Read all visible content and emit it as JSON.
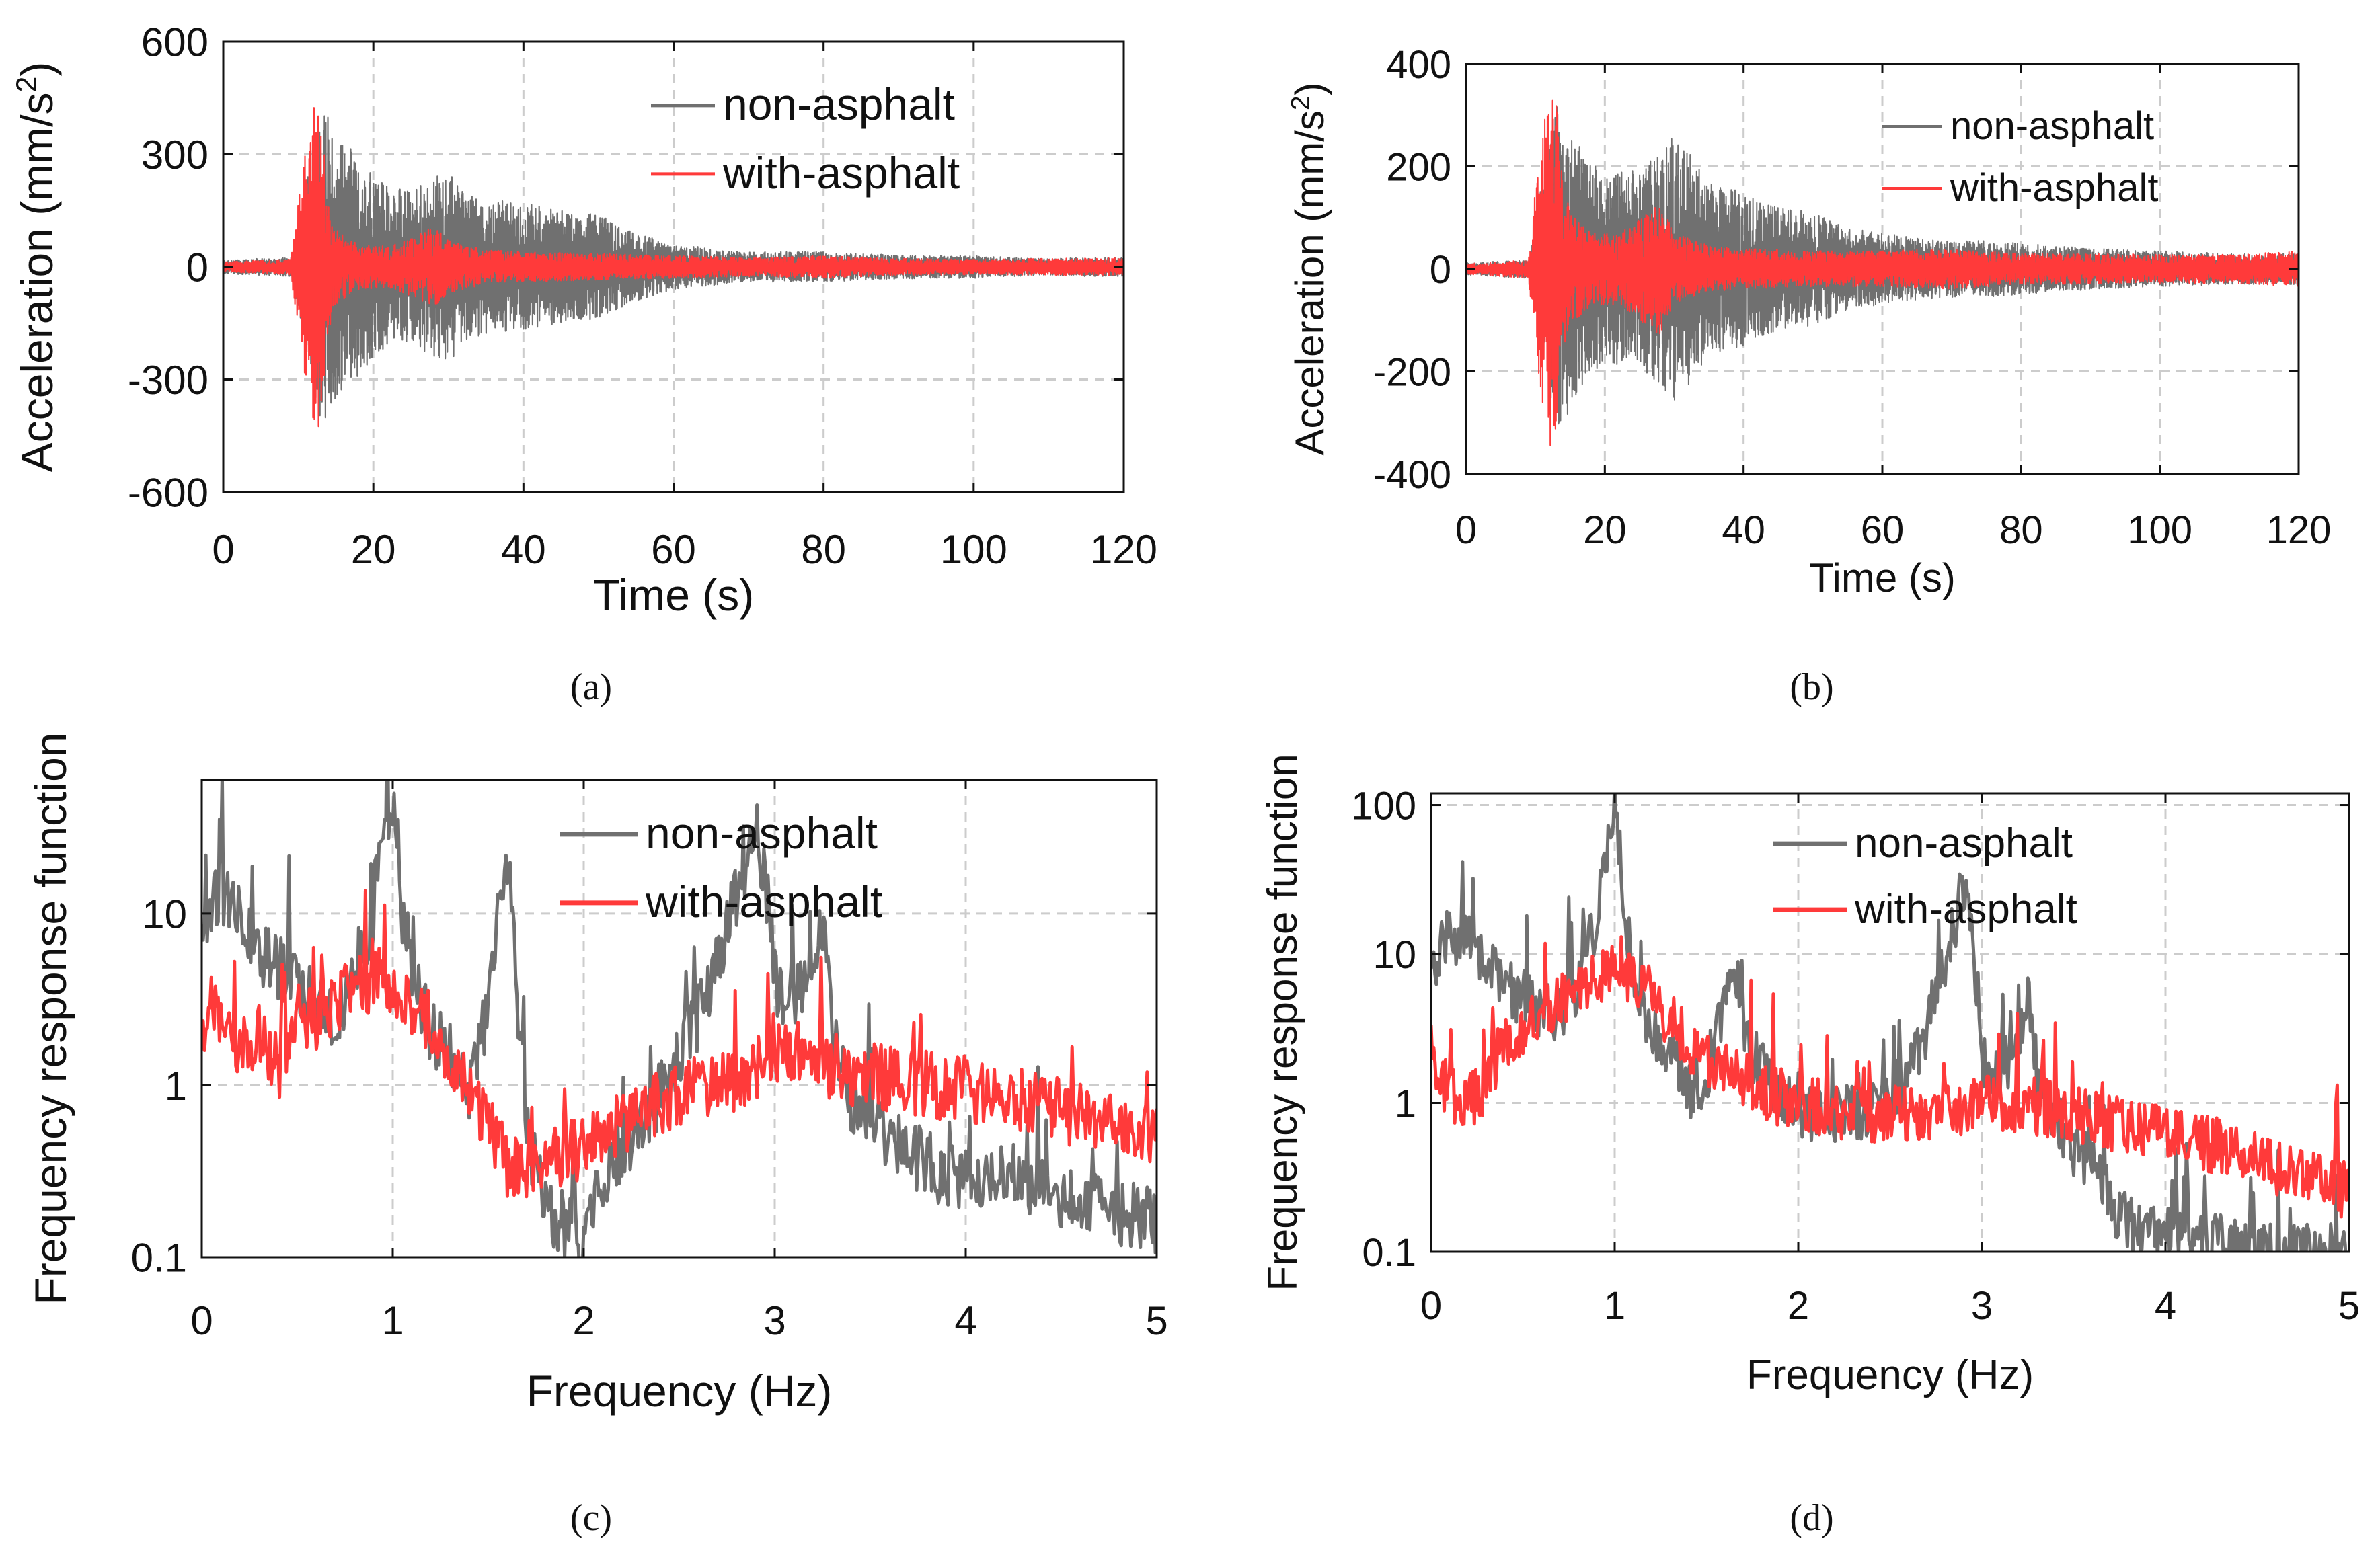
{
  "figure": {
    "captions": [
      "(a)",
      "(b)",
      "(c)",
      "(d)"
    ]
  },
  "colors": {
    "non_asphalt": "#707070",
    "with_asphalt": "#ff3a3a",
    "grid": "#cccccc",
    "axis": "#111111"
  },
  "chart_data": [
    {
      "panel": "a",
      "type": "line",
      "xlabel": "Time (s)",
      "ylabel": "Acceleration (mm/s",
      "ylabel_sup": "2",
      "ylabel_end": ")",
      "xlim": [
        0,
        120
      ],
      "ylim": [
        -600,
        600
      ],
      "xticks": [
        0,
        20,
        40,
        60,
        80,
        100,
        120
      ],
      "yticks": [
        -600,
        -300,
        0,
        300,
        600
      ],
      "ytick_labels": [
        "-600",
        "-300",
        "0",
        "300",
        "600"
      ],
      "grid": true,
      "legend_position": "top-right",
      "series": [
        {
          "name": "non-asphalt",
          "kind": "signal",
          "envelope": [
            [
              0,
              18
            ],
            [
              9,
              25
            ],
            [
              10,
              120
            ],
            [
              11,
              220
            ],
            [
              12,
              330
            ],
            [
              13,
              410
            ],
            [
              14,
              400
            ],
            [
              16,
              330
            ],
            [
              18,
              300
            ],
            [
              20,
              240
            ],
            [
              22,
              220
            ],
            [
              25,
              200
            ],
            [
              28,
              240
            ],
            [
              30,
              260
            ],
            [
              32,
              200
            ],
            [
              35,
              180
            ],
            [
              40,
              170
            ],
            [
              45,
              150
            ],
            [
              50,
              140
            ],
            [
              55,
              90
            ],
            [
              60,
              60
            ],
            [
              65,
              50
            ],
            [
              70,
              40
            ],
            [
              75,
              40
            ],
            [
              80,
              40
            ],
            [
              85,
              35
            ],
            [
              90,
              32
            ],
            [
              95,
              30
            ],
            [
              100,
              30
            ],
            [
              105,
              25
            ],
            [
              110,
              22
            ],
            [
              115,
              25
            ],
            [
              120,
              25
            ]
          ]
        },
        {
          "name": "with-asphalt",
          "kind": "signal",
          "envelope": [
            [
              0,
              14
            ],
            [
              9,
              20
            ],
            [
              10,
              170
            ],
            [
              11,
              330
            ],
            [
              12,
              460
            ],
            [
              13,
              420
            ],
            [
              14,
              180
            ],
            [
              15,
              100
            ],
            [
              18,
              60
            ],
            [
              22,
              55
            ],
            [
              26,
              85
            ],
            [
              28,
              110
            ],
            [
              30,
              70
            ],
            [
              35,
              45
            ],
            [
              40,
              40
            ],
            [
              50,
              35
            ],
            [
              60,
              30
            ],
            [
              70,
              25
            ],
            [
              80,
              30
            ],
            [
              90,
              22
            ],
            [
              100,
              20
            ],
            [
              110,
              22
            ],
            [
              120,
              24
            ]
          ]
        }
      ]
    },
    {
      "panel": "b",
      "type": "line",
      "xlabel": "Time (s)",
      "ylabel": "Acceleration (mm/s",
      "ylabel_sup": "2",
      "ylabel_end": ")",
      "xlim": [
        0,
        120
      ],
      "ylim": [
        -400,
        400
      ],
      "xticks": [
        0,
        20,
        40,
        60,
        80,
        100,
        120
      ],
      "yticks": [
        -400,
        -200,
        0,
        200,
        400
      ],
      "ytick_labels": [
        "-400",
        "-200",
        "0",
        "200",
        "400"
      ],
      "grid": true,
      "legend_position": "top-right",
      "series": [
        {
          "name": "non-asphalt",
          "kind": "signal",
          "envelope": [
            [
              0,
              12
            ],
            [
              9,
              18
            ],
            [
              10,
              80
            ],
            [
              11,
              180
            ],
            [
              12,
              260
            ],
            [
              13,
              320
            ],
            [
              14,
              300
            ],
            [
              16,
              250
            ],
            [
              18,
              210
            ],
            [
              20,
              180
            ],
            [
              25,
              200
            ],
            [
              28,
              230
            ],
            [
              30,
              270
            ],
            [
              32,
              230
            ],
            [
              35,
              170
            ],
            [
              40,
              150
            ],
            [
              45,
              120
            ],
            [
              50,
              110
            ],
            [
              55,
              80
            ],
            [
              60,
              70
            ],
            [
              65,
              60
            ],
            [
              70,
              55
            ],
            [
              75,
              55
            ],
            [
              80,
              50
            ],
            [
              90,
              40
            ],
            [
              100,
              35
            ],
            [
              110,
              30
            ],
            [
              120,
              30
            ]
          ]
        },
        {
          "name": "with-asphalt",
          "kind": "signal",
          "envelope": [
            [
              0,
              10
            ],
            [
              9,
              18
            ],
            [
              10,
              160
            ],
            [
              11,
              260
            ],
            [
              12,
              350
            ],
            [
              13,
              330
            ],
            [
              14,
              170
            ],
            [
              15,
              110
            ],
            [
              18,
              70
            ],
            [
              22,
              70
            ],
            [
              26,
              110
            ],
            [
              28,
              130
            ],
            [
              30,
              70
            ],
            [
              35,
              45
            ],
            [
              40,
              40
            ],
            [
              50,
              35
            ],
            [
              60,
              35
            ],
            [
              70,
              40
            ],
            [
              80,
              30
            ],
            [
              90,
              30
            ],
            [
              100,
              28
            ],
            [
              110,
              28
            ],
            [
              120,
              35
            ]
          ]
        }
      ]
    },
    {
      "panel": "c",
      "type": "line",
      "xlabel": "Frequency (Hz)",
      "ylabel": "Frequency response function",
      "xlim": [
        0,
        5
      ],
      "ylim": [
        0.1,
        60
      ],
      "yscale": "log",
      "xticks": [
        0,
        1,
        2,
        3,
        4,
        5
      ],
      "yticks": [
        0.1,
        1,
        10
      ],
      "ytick_labels": [
        "0.1",
        "1",
        "10"
      ],
      "grid": true,
      "legend_position": "top-right",
      "series": [
        {
          "name": "non-asphalt",
          "kind": "spectrum",
          "x": [
            0,
            0.05,
            0.1,
            0.2,
            0.3,
            0.4,
            0.5,
            0.6,
            0.7,
            0.8,
            0.9,
            0.95,
            1.0,
            1.05,
            1.1,
            1.2,
            1.3,
            1.4,
            1.5,
            1.6,
            1.65,
            1.7,
            1.8,
            1.9,
            2.0,
            2.1,
            2.2,
            2.3,
            2.4,
            2.5,
            2.6,
            2.7,
            2.8,
            2.85,
            2.9,
            2.95,
            3.0,
            3.1,
            3.2,
            3.25,
            3.3,
            3.4,
            3.5,
            3.6,
            3.7,
            3.8,
            3.9,
            4.0,
            4.2,
            4.4,
            4.6,
            4.8,
            5.0
          ],
          "y": [
            8,
            12,
            14,
            9,
            6,
            5,
            3.5,
            3,
            2.5,
            4,
            10,
            40,
            45,
            10,
            4,
            2,
            1.5,
            1,
            2.5,
            18,
            3,
            0.5,
            0.2,
            0.15,
            0.12,
            0.3,
            0.4,
            0.6,
            0.9,
            1.5,
            2.5,
            5,
            12,
            20,
            30,
            15,
            4,
            3,
            5,
            9,
            2,
            0.8,
            0.6,
            0.5,
            0.4,
            0.35,
            0.3,
            0.3,
            0.28,
            0.25,
            0.22,
            0.18,
            0.16
          ]
        },
        {
          "name": "with-asphalt",
          "kind": "spectrum",
          "x": [
            0,
            0.05,
            0.1,
            0.2,
            0.3,
            0.4,
            0.5,
            0.6,
            0.7,
            0.8,
            0.9,
            1.0,
            1.1,
            1.2,
            1.3,
            1.4,
            1.5,
            1.6,
            1.7,
            1.8,
            1.9,
            2.0,
            2.2,
            2.4,
            2.6,
            2.8,
            3.0,
            3.1,
            3.2,
            3.4,
            3.6,
            3.8,
            4.0,
            4.2,
            4.4,
            4.6,
            4.8,
            5.0
          ],
          "y": [
            2,
            3,
            2,
            1.5,
            2,
            1.2,
            2.5,
            2.5,
            3,
            3.5,
            4,
            4,
            3,
            2.2,
            1.3,
            0.9,
            0.6,
            0.35,
            0.3,
            0.35,
            0.4,
            0.45,
            0.6,
            0.8,
            1.0,
            1.1,
            1.5,
            1.6,
            1.4,
            1.2,
            1.1,
            1.0,
            0.95,
            0.85,
            0.75,
            0.65,
            0.55,
            0.5
          ]
        }
      ]
    },
    {
      "panel": "d",
      "type": "line",
      "xlabel": "Frequency (Hz)",
      "ylabel": "Frequency response function",
      "xlim": [
        0,
        5
      ],
      "ylim": [
        0.1,
        120
      ],
      "yscale": "log",
      "xticks": [
        0,
        1,
        2,
        3,
        4,
        5
      ],
      "yticks": [
        0.1,
        1,
        10,
        100
      ],
      "ytick_labels": [
        "0.1",
        "1",
        "10",
        "100"
      ],
      "grid": true,
      "legend_position": "top-right",
      "series": [
        {
          "name": "non-asphalt",
          "kind": "spectrum",
          "x": [
            0,
            0.05,
            0.1,
            0.2,
            0.3,
            0.4,
            0.5,
            0.6,
            0.7,
            0.8,
            0.9,
            0.95,
            1.0,
            1.05,
            1.1,
            1.2,
            1.3,
            1.4,
            1.5,
            1.6,
            1.65,
            1.7,
            1.8,
            1.9,
            2.0,
            2.2,
            2.4,
            2.6,
            2.7,
            2.8,
            2.85,
            2.9,
            2.95,
            3.0,
            3.1,
            3.2,
            3.25,
            3.3,
            3.4,
            3.5,
            3.6,
            3.7,
            3.8,
            4.0,
            4.2,
            4.4,
            4.6,
            4.8,
            5.0
          ],
          "y": [
            6,
            10,
            14,
            12,
            8,
            6,
            5,
            4,
            4,
            6,
            15,
            50,
            90,
            20,
            6,
            3,
            2,
            1.2,
            1.5,
            4,
            8,
            3,
            1.5,
            1.2,
            0.9,
            0.8,
            0.9,
            1.5,
            3,
            8,
            15,
            25,
            10,
            2,
            1.5,
            2.5,
            5,
            1.5,
            0.8,
            0.5,
            0.4,
            0.2,
            0.15,
            0.13,
            0.12,
            0.11,
            0.1,
            0.1,
            0.1
          ]
        },
        {
          "name": "with-asphalt",
          "kind": "spectrum",
          "x": [
            0,
            0.05,
            0.1,
            0.2,
            0.3,
            0.4,
            0.5,
            0.6,
            0.7,
            0.8,
            0.9,
            1.0,
            1.1,
            1.2,
            1.3,
            1.4,
            1.5,
            1.6,
            1.8,
            2.0,
            2.2,
            2.4,
            2.6,
            2.8,
            3.0,
            3.2,
            3.4,
            3.6,
            3.8,
            4.0,
            4.2,
            4.4,
            4.6,
            4.8,
            5.0
          ],
          "y": [
            2.5,
            1.5,
            1.2,
            1.0,
            1.2,
            2.5,
            3,
            4,
            5,
            6,
            7,
            8,
            7,
            5,
            3.5,
            2.5,
            2,
            1.6,
            1.2,
            1.0,
            0.9,
            0.85,
            0.85,
            0.9,
            1.0,
            1.0,
            0.9,
            0.8,
            0.7,
            0.6,
            0.55,
            0.45,
            0.35,
            0.3,
            0.25
          ]
        }
      ]
    }
  ]
}
